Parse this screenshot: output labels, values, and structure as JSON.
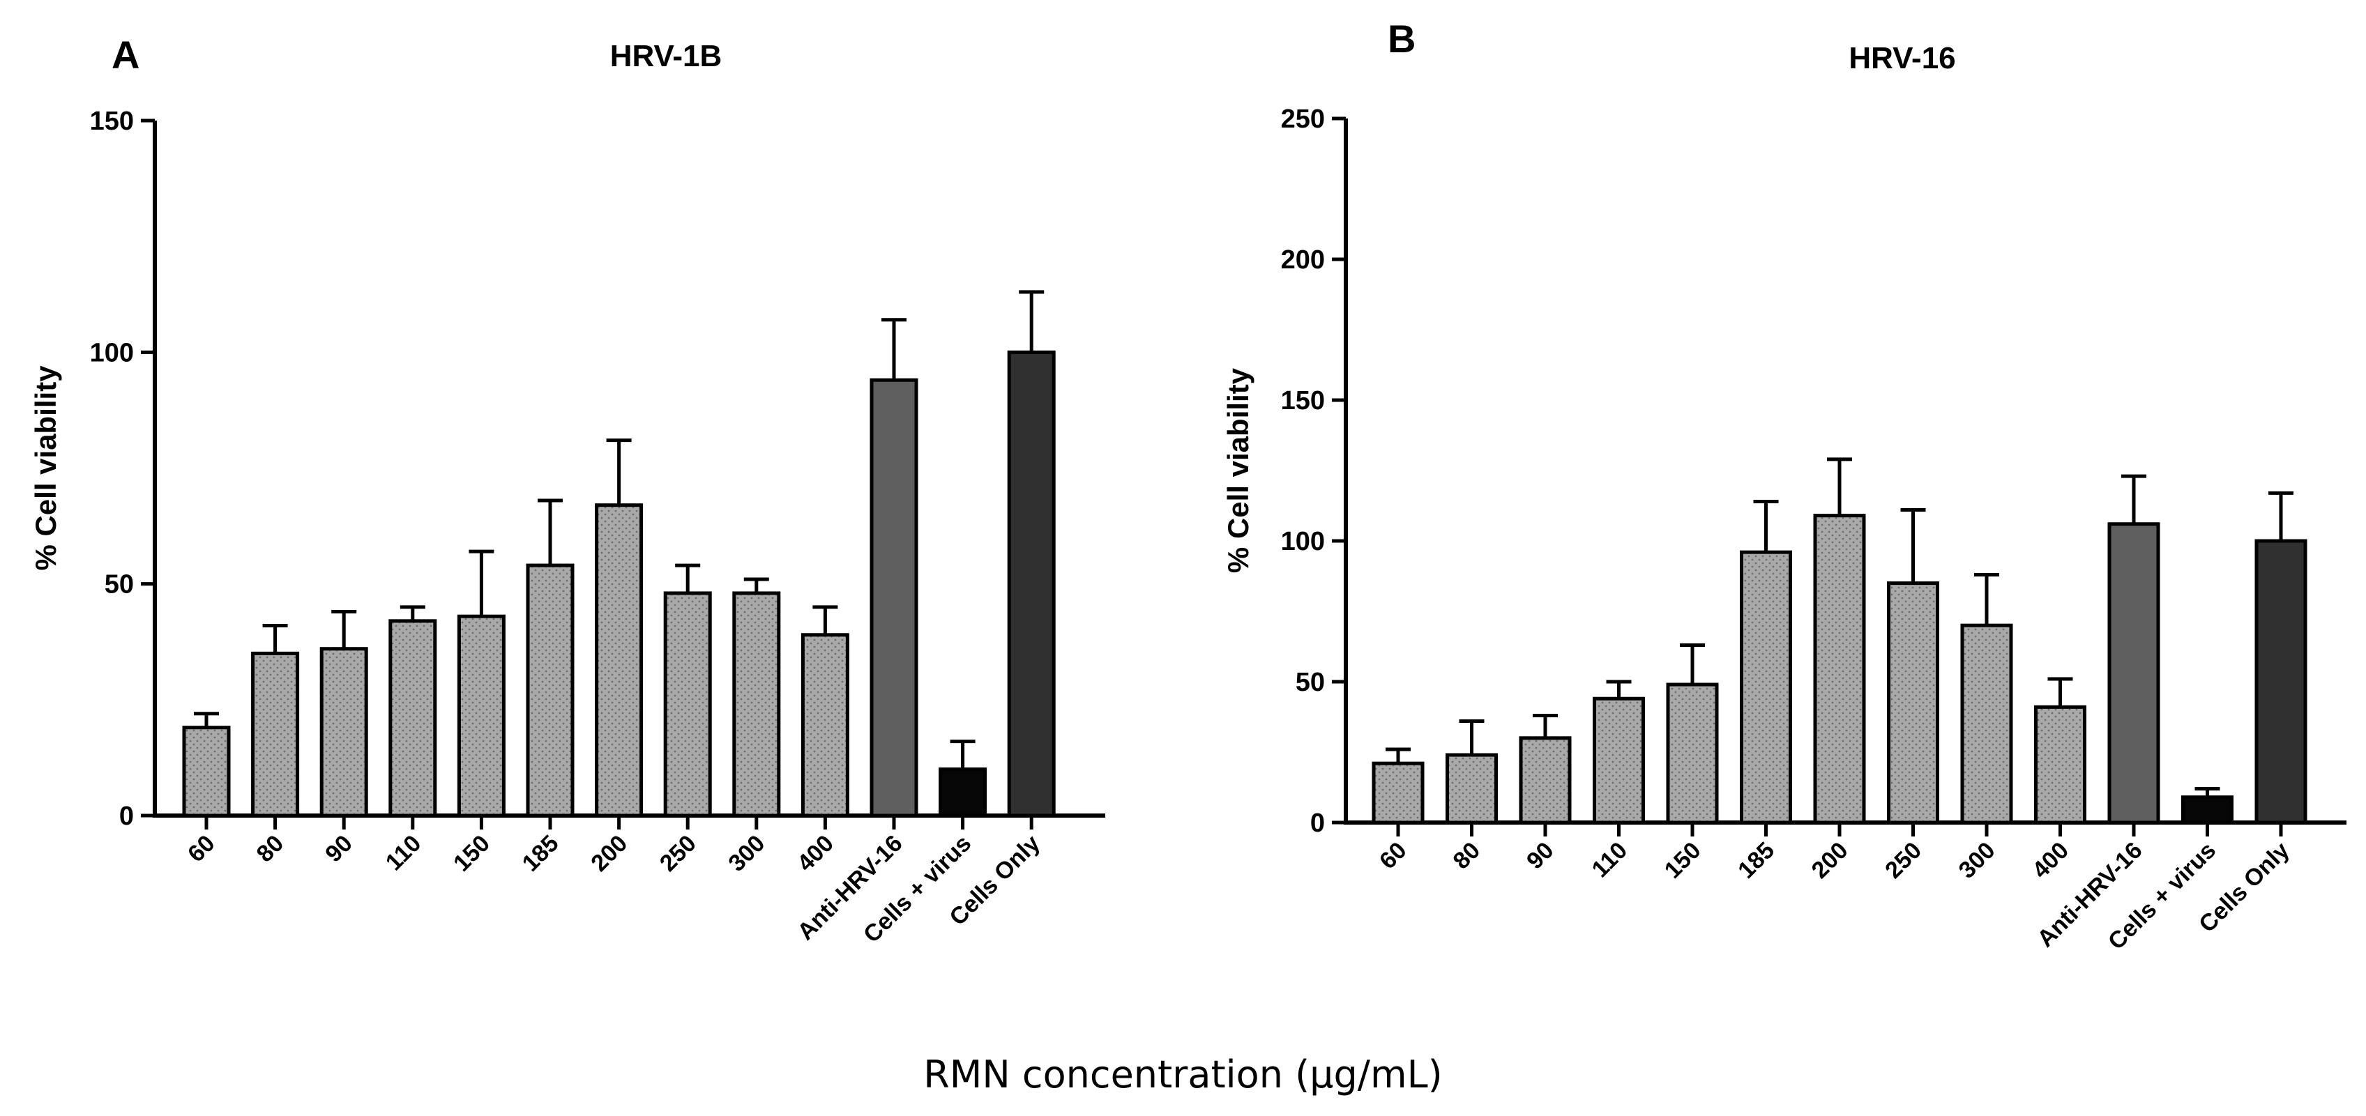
{
  "figure": {
    "shared_xlabel": "RMN concentration (µg/mL)"
  },
  "chart_data": [
    {
      "panel_label": "A",
      "type": "bar",
      "title": "HRV-1B",
      "ylabel": "% Cell viability",
      "xlabel": "",
      "ylim": [
        0,
        150
      ],
      "yticks": [
        0,
        50,
        100,
        150
      ],
      "categories": [
        "60",
        "80",
        "90",
        "110",
        "150",
        "185",
        "200",
        "250",
        "300",
        "400",
        "Anti-HRV-16",
        "Cells + virus",
        "Cells Only"
      ],
      "values": [
        19,
        35,
        36,
        42,
        43,
        54,
        67,
        48,
        48,
        39,
        94,
        10,
        100
      ],
      "errors": [
        3,
        6,
        8,
        3,
        14,
        14,
        14,
        6,
        3,
        6,
        13,
        6,
        13
      ],
      "bar_colors": [
        "#a9a9a9",
        "#a9a9a9",
        "#a9a9a9",
        "#a9a9a9",
        "#a9a9a9",
        "#a9a9a9",
        "#a9a9a9",
        "#a9a9a9",
        "#a9a9a9",
        "#a9a9a9",
        "#5f5f5f",
        "#060606",
        "#303030"
      ],
      "bar_patterns": [
        true,
        true,
        true,
        true,
        true,
        true,
        true,
        true,
        true,
        true,
        false,
        false,
        false
      ],
      "grid": false,
      "legend": "none"
    },
    {
      "panel_label": "B",
      "type": "bar",
      "title": "HRV-16",
      "ylabel": "% Cell viability",
      "xlabel": "",
      "ylim": [
        0,
        250
      ],
      "yticks": [
        0,
        50,
        100,
        150,
        200,
        250
      ],
      "categories": [
        "60",
        "80",
        "90",
        "110",
        "150",
        "185",
        "200",
        "250",
        "300",
        "400",
        "Anti-HRV-16",
        "Cells + virus",
        "Cells Only"
      ],
      "values": [
        21,
        24,
        30,
        44,
        49,
        96,
        109,
        85,
        70,
        41,
        106,
        9,
        100
      ],
      "errors": [
        5,
        12,
        8,
        6,
        14,
        18,
        20,
        26,
        18,
        10,
        17,
        3,
        17
      ],
      "bar_colors": [
        "#a9a9a9",
        "#a9a9a9",
        "#a9a9a9",
        "#a9a9a9",
        "#a9a9a9",
        "#a9a9a9",
        "#a9a9a9",
        "#a9a9a9",
        "#a9a9a9",
        "#a9a9a9",
        "#5f5f5f",
        "#060606",
        "#303030"
      ],
      "bar_patterns": [
        true,
        true,
        true,
        true,
        true,
        true,
        true,
        true,
        true,
        true,
        false,
        false,
        false
      ],
      "grid": false,
      "legend": "none"
    }
  ]
}
